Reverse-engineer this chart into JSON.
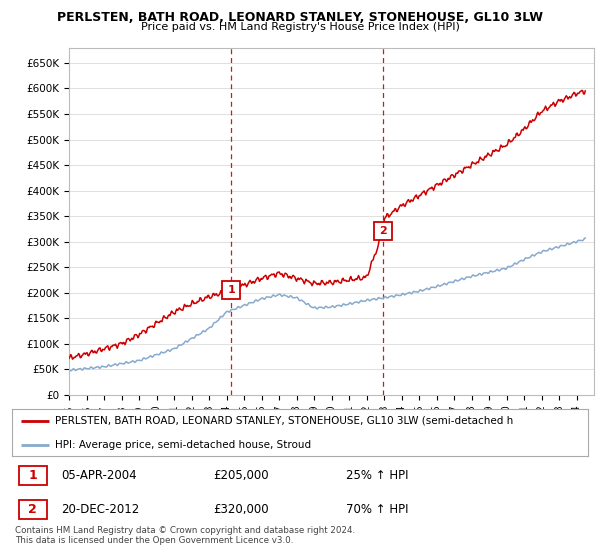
{
  "title": "PERLSTEN, BATH ROAD, LEONARD STANLEY, STONEHOUSE, GL10 3LW",
  "subtitle": "Price paid vs. HM Land Registry's House Price Index (HPI)",
  "legend_line1": "PERLSTEN, BATH ROAD, LEONARD STANLEY, STONEHOUSE, GL10 3LW (semi-detached h",
  "legend_line2": "HPI: Average price, semi-detached house, Stroud",
  "annotation1_label": "1",
  "annotation1_date": "05-APR-2004",
  "annotation1_price": "£205,000",
  "annotation1_hpi": "25% ↑ HPI",
  "annotation2_label": "2",
  "annotation2_date": "20-DEC-2012",
  "annotation2_price": "£320,000",
  "annotation2_hpi": "70% ↑ HPI",
  "footer1": "Contains HM Land Registry data © Crown copyright and database right 2024.",
  "footer2": "This data is licensed under the Open Government Licence v3.0.",
  "ylim": [
    0,
    680000
  ],
  "yticks": [
    0,
    50000,
    100000,
    150000,
    200000,
    250000,
    300000,
    350000,
    400000,
    450000,
    500000,
    550000,
    600000,
    650000
  ],
  "price_color": "#cc0000",
  "hpi_color": "#88aacc",
  "vline_color": "#cc0000",
  "marker1_x": 2004.27,
  "marker1_y": 205000,
  "marker2_x": 2012.97,
  "marker2_y": 320000,
  "background_color": "#ffffff",
  "grid_color": "#e0e0e0",
  "xmin": 1995,
  "xmax": 2025
}
